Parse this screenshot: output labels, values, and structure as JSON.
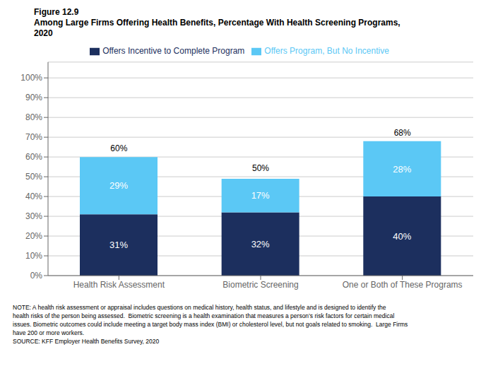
{
  "chart_data": {
    "type": "bar",
    "title": [
      "Figure 12.9",
      "Among Large Firms Offering Health Benefits, Percentage With Health Screening Programs,",
      "2020"
    ],
    "categories": [
      "Health Risk Assessment",
      "Biometric Screening",
      "One or Both of These Programs"
    ],
    "series": [
      {
        "name": "Offers Incentive to Complete Program",
        "color": "#1c2f5e",
        "values": [
          31,
          32,
          40
        ],
        "value_labels": [
          "31%",
          "32%",
          "40%"
        ]
      },
      {
        "name": "Offers Program, But No Incentive",
        "color": "#5bc8f5",
        "values": [
          29,
          17,
          28
        ],
        "value_labels": [
          "29%",
          "17%",
          "28%"
        ]
      }
    ],
    "totals": [
      60,
      50,
      68
    ],
    "total_labels": [
      "60%",
      "50%",
      "68%"
    ],
    "stacked": true,
    "data_labels": true,
    "ylim": [
      0,
      108
    ],
    "yticks": [
      {
        "value": 0,
        "label": "0%"
      },
      {
        "value": 10,
        "label": "10%"
      },
      {
        "value": 20,
        "label": "20%"
      },
      {
        "value": 30,
        "label": "30%"
      },
      {
        "value": 40,
        "label": "40%"
      },
      {
        "value": 50,
        "label": "50%"
      },
      {
        "value": 60,
        "label": "60%"
      },
      {
        "value": 70,
        "label": "70%"
      },
      {
        "value": 80,
        "label": "80%"
      },
      {
        "value": 90,
        "label": "90%"
      },
      {
        "value": 100,
        "label": "100%"
      }
    ],
    "grid": true,
    "legend": "top",
    "annotations": [
      "NOTE: A health risk assessment or appraisal includes questions on medical history, health status, and lifestyle and is designed to identify the",
      "health risks of the person being assessed.  Biometric screening is a health examination that measures a person’s risk factors for certain medical",
      "issues. Biometric outcomes could include meeting a target body mass index (BMI) or cholesterol level, but not goals related to smoking.  Large Firms",
      "have 200 or more workers.",
      "SOURCE: KFF Employer Health Benefits Survey, 2020"
    ]
  }
}
